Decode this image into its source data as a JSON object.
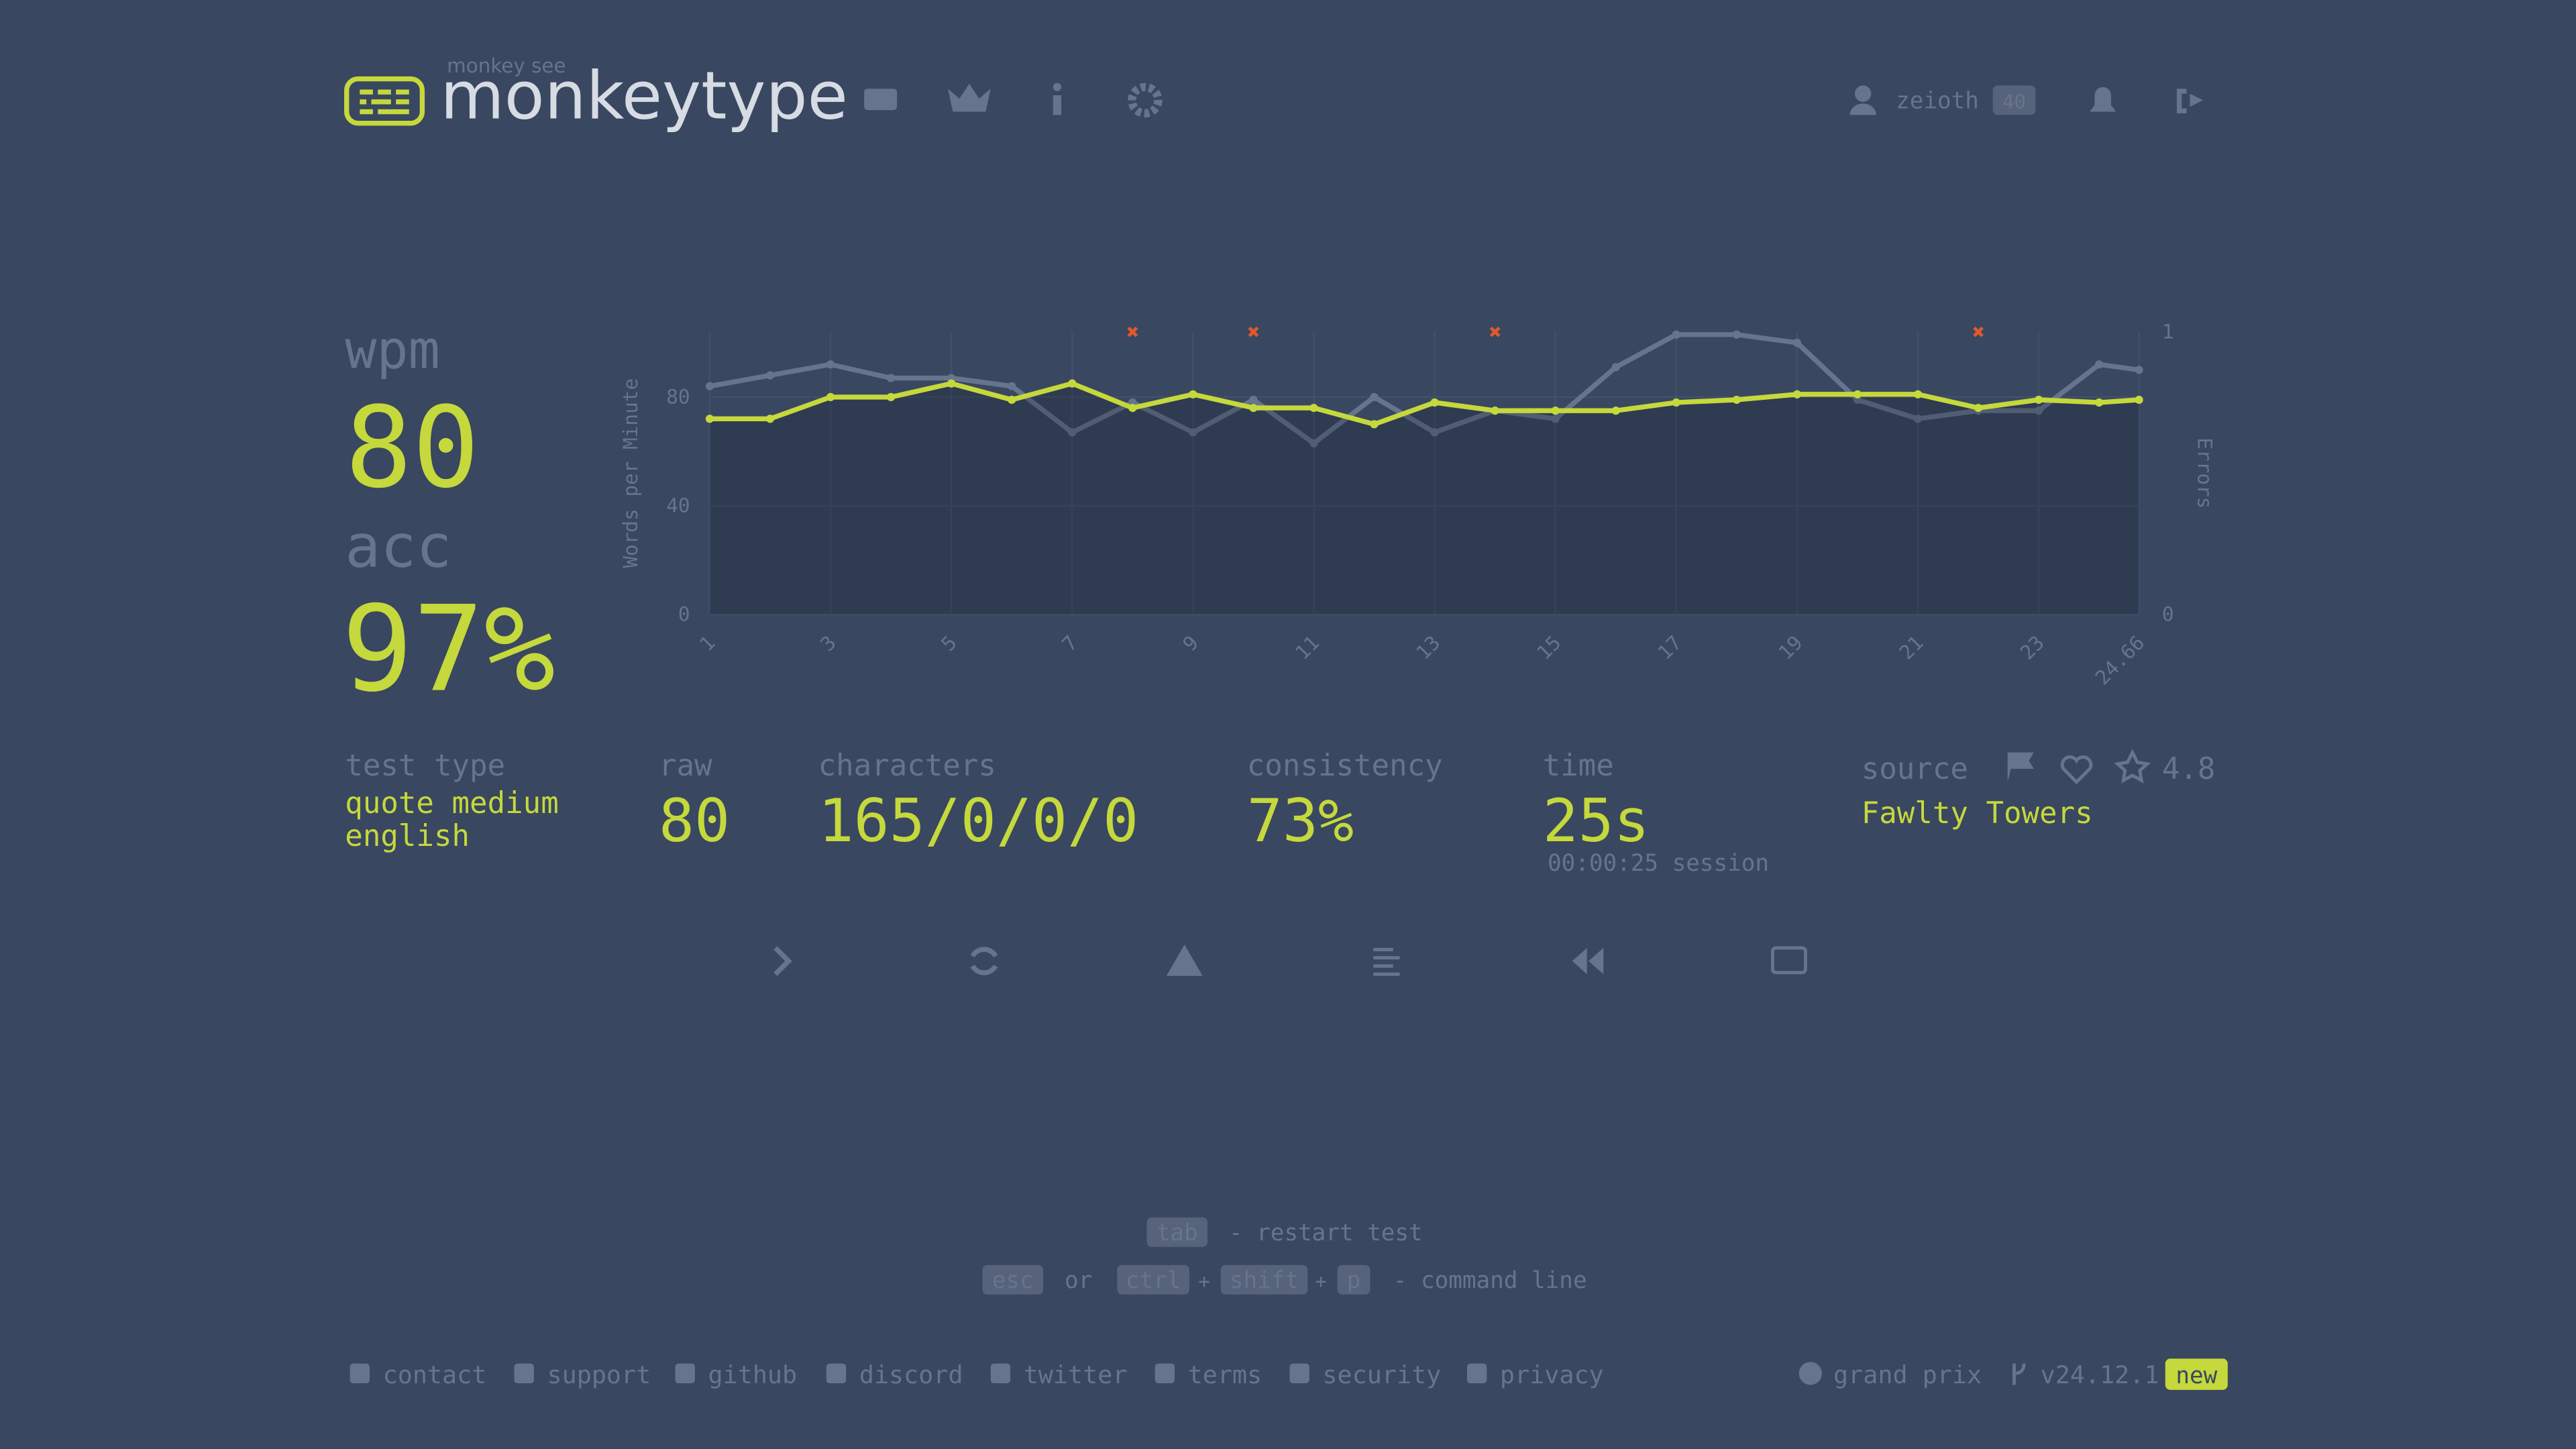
{
  "header": {
    "tagline": "monkey see",
    "logo": "monkeytype",
    "user": "zeioth",
    "level": "40"
  },
  "result": {
    "wpm_label": "wpm",
    "wpm": "80",
    "acc_label": "acc",
    "acc": "97%",
    "test_type_label": "test type",
    "test_type": [
      "quote medium",
      "english"
    ],
    "raw_label": "raw",
    "raw": "80",
    "characters_label": "characters",
    "characters": "165/0/0/0",
    "consistency_label": "consistency",
    "consistency": "73%",
    "time_label": "time",
    "time": "25s",
    "session": "00:00:25 session",
    "source_label": "source",
    "rating": "4.8",
    "source": "Fawlty Towers"
  },
  "chart": {
    "type": "line",
    "y_label": "Words per Minute",
    "y2_label": "Errors",
    "x": [
      1,
      2,
      3,
      4,
      5,
      6,
      7,
      8,
      9,
      10,
      11,
      12,
      13,
      14,
      15,
      16,
      17,
      18,
      19,
      20,
      21,
      22,
      23,
      24,
      24.66
    ],
    "series": [
      {
        "name": "raw",
        "color": "#66748d",
        "values": [
          84,
          88,
          92,
          87,
          87,
          84,
          67,
          78,
          67,
          79,
          63,
          80,
          67,
          75,
          72,
          91,
          103,
          103,
          100,
          79,
          72,
          75,
          75,
          92,
          90
        ]
      },
      {
        "name": "wpm",
        "color": "#c5d83c",
        "values": [
          72,
          72,
          80,
          80,
          85,
          79,
          85,
          76,
          81,
          76,
          76,
          70,
          78,
          75,
          75,
          75,
          78,
          79,
          81,
          81,
          81,
          76,
          79,
          78,
          79
        ]
      }
    ],
    "errors": {
      "color": "#e2582f",
      "x": [
        8,
        10,
        14,
        22
      ],
      "values": [
        1,
        1,
        1,
        1
      ]
    },
    "xlim": [
      1,
      24.66
    ],
    "xticks": [
      1,
      3,
      5,
      7,
      9,
      11,
      13,
      15,
      17,
      19,
      21,
      23,
      24.66
    ],
    "ylim": [
      0,
      104
    ],
    "yticks": [
      0,
      40,
      80
    ],
    "y2lim": [
      0,
      1
    ],
    "y2ticks": [
      0,
      1
    ],
    "grid": true
  },
  "hints": {
    "tab": "tab",
    "restart": "- restart test",
    "esc": "esc",
    "or": "or",
    "ctrl": "ctrl",
    "plus": "+",
    "shift": "shift",
    "p": "p",
    "command": "- command line"
  },
  "footer": {
    "links": [
      "contact",
      "support",
      "github",
      "discord",
      "twitter",
      "terms",
      "security",
      "privacy"
    ],
    "theme": "grand prix",
    "version": "v24.12.1",
    "new": "new"
  }
}
